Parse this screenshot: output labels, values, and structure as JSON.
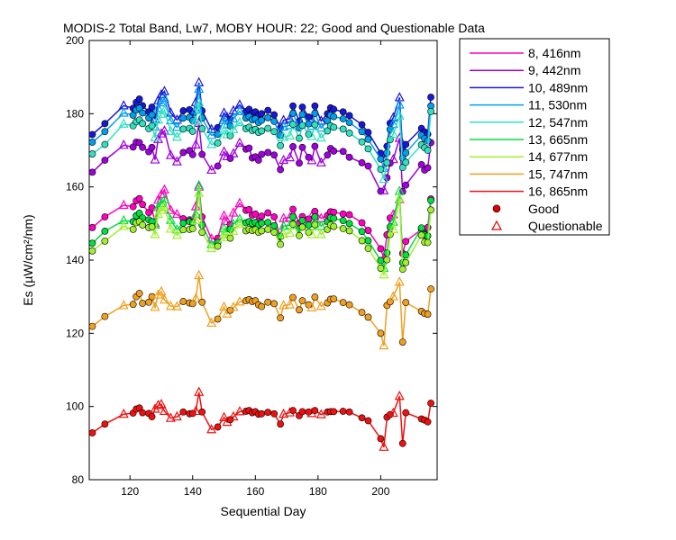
{
  "chart_data": {
    "type": "line",
    "title": "MODIS-2 Total Band,  Lw7, MOBY HOUR: 22;  Good and Questionable Data",
    "xlabel": "Sequential Day",
    "ylabel": "Es (µW/cm²/nm)",
    "xlim": [
      107,
      218
    ],
    "ylim": [
      80,
      200
    ],
    "xticks": [
      120,
      140,
      160,
      180,
      200
    ],
    "yticks": [
      80,
      100,
      120,
      140,
      160,
      180,
      200
    ],
    "legend_position": "outside-right",
    "marker_legend": {
      "good": "Good",
      "questionable": "Questionable"
    },
    "x": [
      108,
      112,
      118,
      121,
      122,
      123,
      124,
      126,
      127,
      128,
      129,
      130,
      131,
      133,
      135,
      137,
      139,
      140,
      141,
      142,
      143,
      146,
      148,
      150,
      151,
      152,
      153,
      155,
      157,
      158,
      159,
      160,
      161,
      162,
      164,
      166,
      168,
      169,
      171,
      172,
      174,
      175,
      177,
      178,
      179,
      181,
      183,
      184,
      185,
      188,
      190,
      194,
      196,
      200,
      201,
      202,
      203,
      204,
      206,
      207,
      208,
      213,
      214,
      215,
      216
    ],
    "quality": [
      "G",
      "G",
      "Q",
      "G",
      "G",
      "G",
      "G",
      "G",
      "G",
      "Q",
      "Q",
      "Q",
      "Q",
      "Q",
      "Q",
      "G",
      "G",
      "G",
      "Q",
      "Q",
      "G",
      "Q",
      "G",
      "Q",
      "Q",
      "G",
      "Q",
      "Q",
      "G",
      "G",
      "G",
      "G",
      "G",
      "G",
      "G",
      "G",
      "G",
      "Q",
      "Q",
      "G",
      "G",
      "G",
      "G",
      "Q",
      "G",
      "Q",
      "G",
      "G",
      "G",
      "G",
      "G",
      "G",
      "G",
      "G",
      "Q",
      "G",
      "G",
      "Q",
      "Q",
      "G",
      "G",
      "G",
      "G",
      "G",
      "G"
    ],
    "series": [
      {
        "name": "8, 416nm",
        "color": "#ff00c0",
        "values": [
          148.9,
          151.8,
          155.0,
          154.6,
          156.2,
          156.8,
          155.2,
          153.0,
          154.3,
          150.0,
          156.4,
          157.9,
          159.2,
          153.6,
          152.5,
          151.3,
          151.0,
          150.9,
          154.6,
          160.0,
          151.8,
          145.8,
          146.0,
          152.1,
          150.6,
          149.7,
          152.9,
          155.5,
          153.6,
          153.8,
          152.3,
          152.6,
          150.7,
          152.0,
          152.9,
          151.8,
          146.3,
          151.4,
          151.6,
          153.9,
          150.1,
          151.9,
          151.2,
          152.0,
          153.3,
          151.4,
          152.2,
          153.2,
          153.1,
          152.6,
          152.4,
          150.2,
          148.1,
          143.1,
          140.5,
          146.9,
          151.5,
          152.4,
          156.6,
          141.8,
          145.1,
          148.4,
          147.2,
          148.9,
          156.7
        ]
      },
      {
        "name": "9, 442nm",
        "color": "#a000e0",
        "values": [
          164.0,
          167.3,
          171.4,
          170.9,
          172.2,
          172.1,
          170.8,
          169.6,
          170.8,
          167.4,
          173.0,
          174.5,
          175.3,
          168.6,
          166.9,
          169.4,
          169.9,
          168.8,
          171.5,
          177.4,
          168.9,
          164.6,
          165.7,
          169.6,
          168.3,
          167.8,
          169.1,
          172.0,
          170.3,
          170.6,
          167.9,
          168.2,
          167.3,
          168.9,
          169.4,
          168.7,
          164.7,
          167.3,
          168.0,
          171.0,
          166.5,
          170.8,
          168.1,
          167.2,
          171.1,
          166.6,
          168.7,
          170.5,
          169.8,
          169.7,
          168.1,
          166.6,
          165.7,
          158.8,
          159.0,
          162.5,
          166.5,
          167.5,
          173.3,
          158.7,
          160.5,
          166.1,
          164.6,
          165.2,
          172.1
        ]
      },
      {
        "name": "10, 489nm",
        "color": "#1818d8",
        "values": [
          174.3,
          177.3,
          182.2,
          181.5,
          183.1,
          184.0,
          182.2,
          180.5,
          181.8,
          178.5,
          183.6,
          185.2,
          186.1,
          180.2,
          178.3,
          180.8,
          181.1,
          180.0,
          183.1,
          188.5,
          180.8,
          175.7,
          176.2,
          180.2,
          179.0,
          178.5,
          180.8,
          182.4,
          180.6,
          181.2,
          180.1,
          180.5,
          179.6,
          180.0,
          180.9,
          179.7,
          176.1,
          178.2,
          178.6,
          182.1,
          178.0,
          181.8,
          179.1,
          178.4,
          182.1,
          178.0,
          180.0,
          181.6,
          181.2,
          180.5,
          179.5,
          177.0,
          174.9,
          169.2,
          167.9,
          171.1,
          177.4,
          178.9,
          184.4,
          170.2,
          171.6,
          176.0,
          175.0,
          174.4,
          184.5
        ]
      },
      {
        "name": "11, 530nm",
        "color": "#00a0f0",
        "values": [
          172.2,
          175.1,
          180.2,
          179.6,
          181.0,
          181.5,
          180.2,
          178.8,
          179.7,
          176.4,
          181.5,
          183.0,
          184.2,
          178.1,
          176.3,
          178.8,
          179.0,
          178.1,
          181.0,
          186.7,
          178.8,
          174.1,
          174.4,
          178.2,
          177.0,
          176.6,
          178.6,
          180.6,
          178.8,
          179.2,
          178.3,
          178.6,
          177.6,
          178.2,
          178.9,
          177.9,
          174.1,
          176.4,
          176.8,
          180.1,
          176.1,
          179.8,
          177.2,
          176.6,
          180.1,
          176.1,
          178.1,
          179.6,
          179.2,
          178.6,
          177.6,
          175.1,
          173.0,
          167.6,
          165.1,
          169.3,
          175.7,
          177.1,
          182.4,
          167.9,
          169.3,
          174.1,
          173.2,
          172.6,
          182.1
        ]
      },
      {
        "name": "12, 547nm",
        "color": "#30e0c0",
        "values": [
          169.0,
          171.6,
          177.2,
          176.7,
          177.8,
          178.3,
          177.3,
          175.9,
          176.7,
          173.5,
          178.3,
          179.9,
          180.9,
          175.2,
          173.6,
          175.8,
          176.0,
          175.2,
          178.0,
          183.1,
          175.9,
          171.6,
          172.0,
          175.4,
          174.3,
          174.0,
          175.7,
          177.6,
          175.9,
          176.3,
          175.4,
          175.7,
          174.9,
          175.3,
          176.0,
          175.1,
          171.3,
          173.6,
          174.0,
          177.1,
          173.3,
          176.8,
          174.4,
          173.8,
          177.0,
          173.4,
          175.3,
          176.7,
          176.3,
          175.8,
          174.7,
          172.3,
          170.4,
          164.8,
          162.1,
          166.6,
          172.9,
          174.4,
          179.4,
          165.3,
          166.7,
          171.5,
          170.7,
          170.0,
          180.6
        ]
      },
      {
        "name": "13, 665nm",
        "color": "#00e040",
        "values": [
          144.6,
          147.9,
          150.8,
          150.5,
          152.1,
          152.8,
          151.5,
          151.0,
          150.5,
          149.6,
          154.4,
          155.5,
          156.6,
          150.9,
          148.3,
          150.1,
          150.5,
          150.2,
          152.6,
          160.4,
          149.6,
          144.3,
          144.8,
          148.6,
          147.8,
          148.4,
          149.8,
          151.2,
          150.2,
          150.5,
          150.0,
          150.3,
          149.6,
          150.1,
          150.3,
          149.4,
          146.5,
          149.3,
          149.5,
          151.8,
          148.6,
          150.8,
          149.6,
          149.2,
          151.8,
          149.3,
          150.5,
          151.6,
          151.4,
          150.8,
          150.0,
          147.8,
          145.3,
          139.9,
          137.8,
          142.0,
          149.1,
          150.4,
          158.8,
          139.3,
          141.4,
          148.8,
          146.9,
          146.6,
          156.3
        ]
      },
      {
        "name": "14, 677nm",
        "color": "#a0f030",
        "values": [
          142.5,
          145.2,
          149.2,
          148.4,
          150.2,
          150.5,
          149.6,
          148.9,
          149.1,
          147.0,
          152.5,
          153.6,
          154.5,
          148.5,
          146.8,
          148.3,
          148.4,
          148.6,
          150.8,
          158.3,
          147.6,
          143.2,
          143.8,
          147.0,
          146.2,
          146.0,
          147.9,
          149.8,
          148.0,
          148.4,
          148.1,
          148.3,
          147.6,
          148.0,
          148.4,
          147.6,
          144.3,
          147.1,
          147.4,
          149.8,
          146.7,
          149.0,
          147.6,
          147.0,
          149.7,
          147.0,
          148.4,
          149.6,
          149.2,
          148.6,
          148.0,
          145.3,
          143.2,
          137.8,
          136.0,
          140.1,
          147.0,
          148.4,
          156.8,
          137.5,
          139.3,
          146.8,
          144.9,
          144.8,
          153.7
        ]
      },
      {
        "name": "15, 747nm",
        "color": "#f0a020",
        "values": [
          121.9,
          124.6,
          127.6,
          127.9,
          130.0,
          130.9,
          128.2,
          128.5,
          130.0,
          127.1,
          130.5,
          131.4,
          129.1,
          127.4,
          127.3,
          128.7,
          128.3,
          128.1,
          129.5,
          135.8,
          128.5,
          122.8,
          123.9,
          127.2,
          125.3,
          126.3,
          127.1,
          128.6,
          128.9,
          129.2,
          128.7,
          128.9,
          127.8,
          127.3,
          128.5,
          128.1,
          124.2,
          127.6,
          127.8,
          129.8,
          126.4,
          128.9,
          127.8,
          127.0,
          129.9,
          127.4,
          128.3,
          129.3,
          129.4,
          128.4,
          127.8,
          125.7,
          124.4,
          120.0,
          116.6,
          127.6,
          128.6,
          130.0,
          134.0,
          117.6,
          128.4,
          126.0,
          125.4,
          125.2,
          132.1
        ]
      },
      {
        "name": "16, 865nm",
        "color": "#f01010",
        "values": [
          92.8,
          95.2,
          97.9,
          98.2,
          99.3,
          99.6,
          98.3,
          98.1,
          97.2,
          99.3,
          100.3,
          100.6,
          98.7,
          96.8,
          97.2,
          98.5,
          98.0,
          98.1,
          98.7,
          103.9,
          98.5,
          93.7,
          94.4,
          97.0,
          95.7,
          96.4,
          97.2,
          98.6,
          98.7,
          98.9,
          98.3,
          98.6,
          97.9,
          98.0,
          98.4,
          98.0,
          95.2,
          97.9,
          98.3,
          98.9,
          97.5,
          98.6,
          98.5,
          98.1,
          98.9,
          97.8,
          98.5,
          98.6,
          98.6,
          98.7,
          98.5,
          96.9,
          96.1,
          91.2,
          88.9,
          97.1,
          97.8,
          98.2,
          102.8,
          89.9,
          98.3,
          96.6,
          96.3,
          95.8,
          100.9
        ]
      }
    ]
  }
}
